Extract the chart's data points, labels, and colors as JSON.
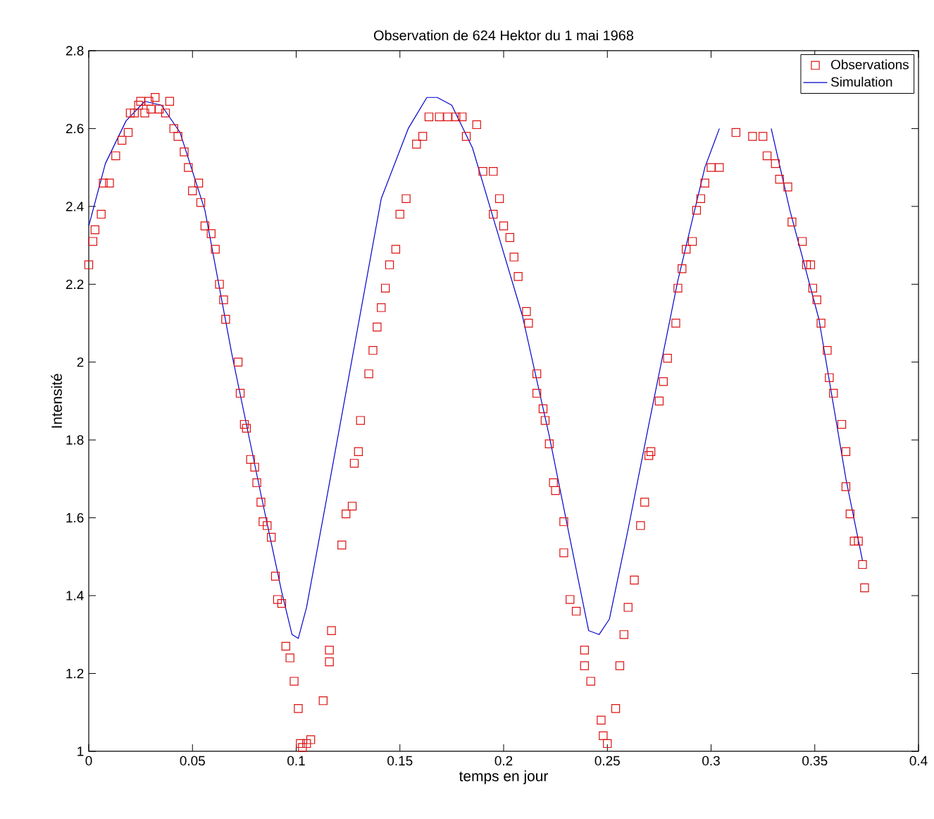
{
  "chart_data": {
    "type": "line",
    "title": "Observation de 624 Hektor du 1 mai 1968",
    "xlabel": "temps en jour",
    "ylabel": "Intensité",
    "xlim": [
      0,
      0.4
    ],
    "ylim": [
      1,
      2.8
    ],
    "xticks": [
      0,
      0.05,
      0.1,
      0.15,
      0.2,
      0.25,
      0.3,
      0.35,
      0.4
    ],
    "yticks": [
      1,
      1.2,
      1.4,
      1.6,
      1.8,
      2,
      2.2,
      2.4,
      2.6,
      2.8
    ],
    "grid": false,
    "legend": "top right",
    "series": [
      {
        "name": "Observations",
        "type": "scatter",
        "marker": "square",
        "color": "#dd1111",
        "x": [
          0,
          0.002,
          0.003,
          0.006,
          0.007,
          0.01,
          0.013,
          0.016,
          0.019,
          0.02,
          0.022,
          0.024,
          0.025,
          0.027,
          0.029,
          0.03,
          0.032,
          0.034,
          0.037,
          0.039,
          0.041,
          0.043,
          0.046,
          0.048,
          0.05,
          0.053,
          0.054,
          0.056,
          0.059,
          0.061,
          0.063,
          0.065,
          0.066,
          0.072,
          0.073,
          0.075,
          0.076,
          0.078,
          0.08,
          0.081,
          0.083,
          0.084,
          0.086,
          0.088,
          0.09,
          0.091,
          0.093,
          0.095,
          0.097,
          0.099,
          0.101,
          0.102,
          0.103,
          0.105,
          0.107,
          0.113,
          0.116,
          0.116,
          0.117,
          0.122,
          0.124,
          0.127,
          0.128,
          0.13,
          0.131,
          0.135,
          0.137,
          0.139,
          0.141,
          0.143,
          0.145,
          0.148,
          0.15,
          0.153,
          0.158,
          0.161,
          0.164,
          0.169,
          0.173,
          0.177,
          0.18,
          0.182,
          0.187,
          0.19,
          0.195,
          0.195,
          0.198,
          0.2,
          0.203,
          0.205,
          0.207,
          0.211,
          0.212,
          0.216,
          0.216,
          0.219,
          0.22,
          0.222,
          0.224,
          0.225,
          0.229,
          0.229,
          0.232,
          0.235,
          0.239,
          0.239,
          0.242,
          0.247,
          0.248,
          0.25,
          0.254,
          0.256,
          0.258,
          0.26,
          0.263,
          0.266,
          0.268,
          0.27,
          0.271,
          0.275,
          0.277,
          0.279,
          0.283,
          0.284,
          0.286,
          0.288,
          0.291,
          0.293,
          0.295,
          0.297,
          0.3,
          0.304,
          0.312,
          0.32,
          0.325,
          0.327,
          0.331,
          0.333,
          0.337,
          0.339,
          0.344,
          0.346,
          0.348,
          0.349,
          0.351,
          0.353,
          0.356,
          0.357,
          0.359,
          0.363,
          0.365,
          0.365,
          0.367,
          0.369,
          0.371,
          0.373,
          0.374
        ],
        "values": [
          2.25,
          2.31,
          2.34,
          2.38,
          2.46,
          2.46,
          2.53,
          2.57,
          2.59,
          2.64,
          2.64,
          2.66,
          2.67,
          2.64,
          2.67,
          2.65,
          2.68,
          2.65,
          2.64,
          2.67,
          2.6,
          2.58,
          2.54,
          2.5,
          2.44,
          2.46,
          2.41,
          2.35,
          2.33,
          2.29,
          2.2,
          2.16,
          2.11,
          2.0,
          1.92,
          1.84,
          1.83,
          1.75,
          1.73,
          1.69,
          1.64,
          1.59,
          1.58,
          1.55,
          1.45,
          1.39,
          1.38,
          1.27,
          1.24,
          1.18,
          1.11,
          1.02,
          1.01,
          1.02,
          1.03,
          1.13,
          1.23,
          1.26,
          1.31,
          1.53,
          1.61,
          1.63,
          1.74,
          1.77,
          1.85,
          1.97,
          2.03,
          2.09,
          2.14,
          2.19,
          2.25,
          2.29,
          2.38,
          2.42,
          2.56,
          2.58,
          2.63,
          2.63,
          2.63,
          2.63,
          2.63,
          2.58,
          2.61,
          2.49,
          2.49,
          2.38,
          2.42,
          2.35,
          2.32,
          2.27,
          2.22,
          2.13,
          2.1,
          1.97,
          1.92,
          1.88,
          1.85,
          1.79,
          1.69,
          1.67,
          1.59,
          1.51,
          1.39,
          1.36,
          1.26,
          1.22,
          1.18,
          1.08,
          1.04,
          1.02,
          1.11,
          1.22,
          1.3,
          1.37,
          1.44,
          1.58,
          1.64,
          1.76,
          1.77,
          1.9,
          1.95,
          2.01,
          2.1,
          2.19,
          2.24,
          2.29,
          2.31,
          2.39,
          2.42,
          2.46,
          2.5,
          2.5,
          2.59,
          2.58,
          2.58,
          2.53,
          2.51,
          2.47,
          2.45,
          2.36,
          2.31,
          2.25,
          2.25,
          2.19,
          2.16,
          2.1,
          2.03,
          1.96,
          1.92,
          1.84,
          1.77,
          1.68,
          1.61,
          1.54,
          1.54,
          1.48,
          1.42
        ]
      },
      {
        "name": "Simulation",
        "marker": "none",
        "color": "#0000cc",
        "line_style": "solid",
        "x": [
          0,
          0.008,
          0.018,
          0.027,
          0.035,
          0.044,
          0.056,
          0.069,
          0.083,
          0.093,
          0.098,
          0.101,
          0.105,
          0.114,
          0.127,
          0.141,
          0.154,
          0.163,
          0.168,
          0.175,
          0.185,
          0.195,
          0.209,
          0.222,
          0.236,
          0.241,
          0.246,
          0.251,
          0.26,
          0.27,
          0.284,
          0.297,
          0.304,
          0.317,
          0.329,
          0.338,
          0.352,
          0.365,
          0.373
        ],
        "values": [
          2.35,
          2.51,
          2.62,
          2.67,
          2.66,
          2.59,
          2.39,
          2.02,
          1.66,
          1.41,
          1.3,
          1.29,
          1.37,
          1.63,
          2.01,
          2.42,
          2.6,
          2.68,
          2.68,
          2.66,
          2.55,
          2.37,
          2.12,
          1.81,
          1.44,
          1.31,
          1.3,
          1.34,
          1.57,
          1.84,
          2.21,
          2.5,
          2.6,
          null,
          2.6,
          2.39,
          2.11,
          1.7,
          1.49
        ]
      }
    ]
  }
}
